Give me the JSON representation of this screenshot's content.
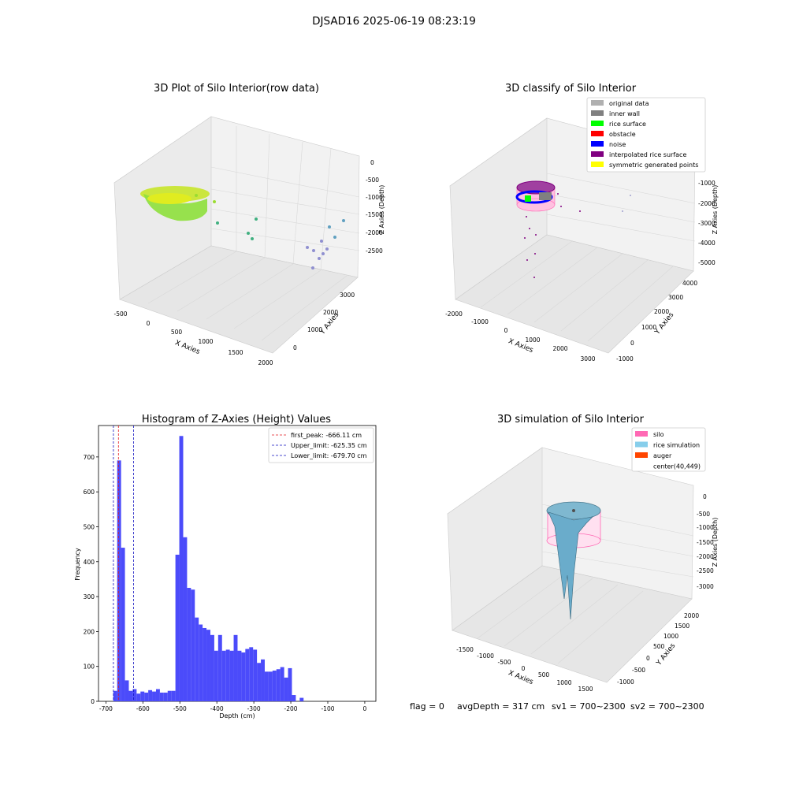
{
  "suptitle": "DJSAD16 2025-06-19 08:23:19",
  "footer": {
    "flag": "flag = 0",
    "avg_depth": "avgDepth = 317 cm",
    "sv1": "sv1 = 700~2300",
    "sv2": "sv2 = 700~2300"
  },
  "colors": {
    "hist_bar": "#4b4bfa",
    "first_peak": "#e31a1c",
    "limits": "#1010c0",
    "silo": "#ff69b4",
    "rice_sim": "#87ceeb",
    "auger": "#ff4500",
    "rice_surface": "#00ff00",
    "obstacle": "#ff0000",
    "noise": "#0000ff",
    "interp": "#800080",
    "symmetric": "#ffff00",
    "inner_wall": "#808080",
    "original": "#b0b0b0"
  },
  "panel1": {
    "title": "3D Plot of Silo Interior(row data)",
    "xlabel": "X Axies",
    "ylabel": "Y Axies",
    "zlabel": "Z Axies (Depth)",
    "xticks": [
      "-500",
      "0",
      "500",
      "1000",
      "1500",
      "2000"
    ],
    "yticks": [
      "0",
      "1000",
      "2000",
      "3000"
    ],
    "zticks": [
      "0",
      "-500",
      "-1000",
      "-1500",
      "-2000",
      "-2500"
    ]
  },
  "panel2": {
    "title": "3D classify of Silo Interior",
    "xlabel": "X Axies",
    "ylabel": "Y Axies",
    "zlabel": "Z Axies (Depth)",
    "xticks": [
      "-2000",
      "-1000",
      "0",
      "1000",
      "2000",
      "3000"
    ],
    "yticks": [
      "-1000",
      "0",
      "1000",
      "2000",
      "3000",
      "4000"
    ],
    "zticks": [
      "-1000",
      "-2000",
      "-3000",
      "-4000",
      "-5000"
    ],
    "legend": [
      {
        "label": "original data",
        "color": "#b0b0b0"
      },
      {
        "label": "inner wall",
        "color": "#808080"
      },
      {
        "label": "rice surface",
        "color": "#00ff00"
      },
      {
        "label": "obstacle",
        "color": "#ff0000"
      },
      {
        "label": "noise",
        "color": "#0000ff"
      },
      {
        "label": "interpolated rice surface",
        "color": "#800080"
      },
      {
        "label": "symmetric generated points",
        "color": "#ffff00"
      }
    ]
  },
  "panel4": {
    "title": "3D simulation of Silo Interior",
    "xlabel": "X Axies",
    "ylabel": "Y Axies",
    "zlabel": "Z Axies (Depth)",
    "xticks": [
      "-1500",
      "-1000",
      "-500",
      "0",
      "500",
      "1000",
      "1500"
    ],
    "yticks": [
      "-1000",
      "-500",
      "0",
      "500",
      "1000",
      "1500",
      "2000"
    ],
    "zticks": [
      "0",
      "-500",
      "-1000",
      "-1500",
      "-2000",
      "-2500",
      "-3000"
    ],
    "legend": [
      {
        "label": "silo",
        "color": "#ff69b4"
      },
      {
        "label": "rice simulation",
        "color": "#87ceeb"
      },
      {
        "label": "auger",
        "color": "#ff4500"
      },
      {
        "label": "center(40,449)",
        "color": ""
      }
    ]
  },
  "chart_data": {
    "type": "bar",
    "title": "Histogram of Z-Axies (Height) Values",
    "xlabel": "Depth (cm)",
    "ylabel": "Frequency",
    "xlim": [
      -720,
      30
    ],
    "ylim": [
      0,
      790
    ],
    "xticks": [
      -700,
      -600,
      -500,
      -400,
      -300,
      -200,
      -100,
      0
    ],
    "yticks": [
      0,
      100,
      200,
      300,
      400,
      500,
      600,
      700
    ],
    "bin_start": -680,
    "bin_width": 10.5,
    "values": [
      30,
      690,
      440,
      60,
      30,
      35,
      22,
      28,
      25,
      32,
      28,
      35,
      25,
      25,
      30,
      30,
      420,
      760,
      470,
      325,
      320,
      240,
      220,
      210,
      205,
      190,
      145,
      190,
      145,
      148,
      145,
      190,
      145,
      140,
      150,
      155,
      148,
      110,
      120,
      85,
      85,
      88,
      92,
      98,
      68,
      95,
      18,
      0,
      10
    ],
    "vlines": [
      {
        "name": "first_peak: -666.11 cm",
        "x": -666.11,
        "color": "#e31a1c"
      },
      {
        "name": "Upper_limit: -625.35 cm",
        "x": -625.35,
        "color": "#1010c0"
      },
      {
        "name": "Lower_limit: -679.70 cm",
        "x": -679.7,
        "color": "#1010c0"
      }
    ],
    "legend_position": "top-right",
    "grid": false
  }
}
